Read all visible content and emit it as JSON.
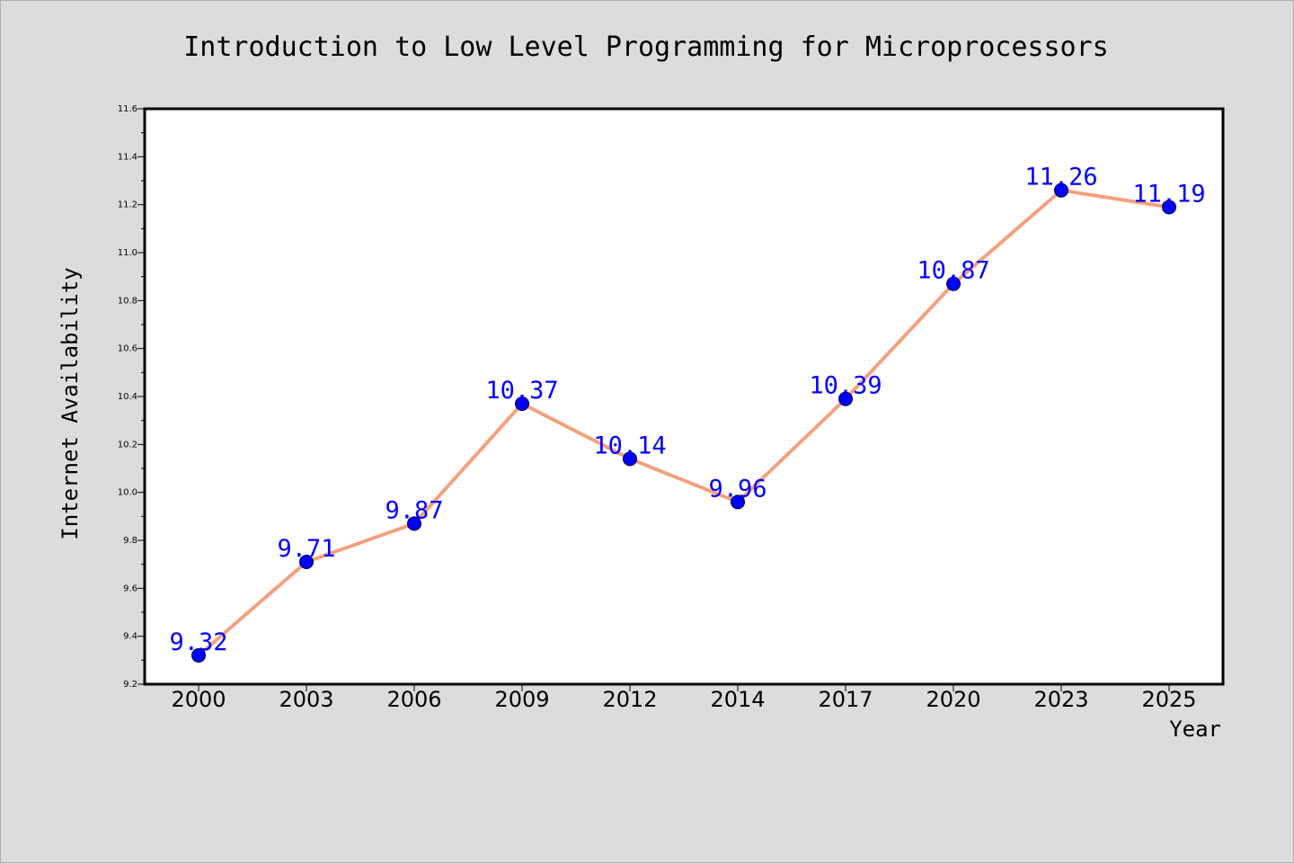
{
  "colors": {
    "background": "#dcdcdc",
    "plot_area": "#ffffff",
    "line": "#f4a07e",
    "marker": "#0000ff",
    "data_label": "#0000ff"
  },
  "chart_data": {
    "type": "line",
    "title": "Introduction to Low Level Programming for Microprocessors",
    "xlabel": "Year",
    "ylabel": "Internet Availability",
    "categories": [
      "2000",
      "2003",
      "2006",
      "2009",
      "2012",
      "2014",
      "2017",
      "2020",
      "2023",
      "2025"
    ],
    "series": [
      {
        "values": [
          9.32,
          9.71,
          9.87,
          10.37,
          10.14,
          9.96,
          10.39,
          10.87,
          11.26,
          11.19
        ],
        "labels": [
          "9.32",
          "9.71",
          "9.87",
          "10.37",
          "10.14",
          "9.96",
          "10.39",
          "10.87",
          "11.26",
          "11.19"
        ]
      }
    ],
    "ylim": [
      9.2,
      11.6
    ],
    "yticks": [
      9.2,
      9.4,
      9.6,
      9.8,
      10.0,
      10.2,
      10.4,
      10.6,
      10.8,
      11.0,
      11.2,
      11.4,
      11.6
    ],
    "ytick_labels": [
      "9.2",
      "9.4",
      "9.6",
      "9.8",
      "10.0",
      "10.2",
      "10.4",
      "10.6",
      "10.8",
      "11.0",
      "11.2",
      "11.4",
      "11.6"
    ],
    "grid": false,
    "legend": "none"
  }
}
